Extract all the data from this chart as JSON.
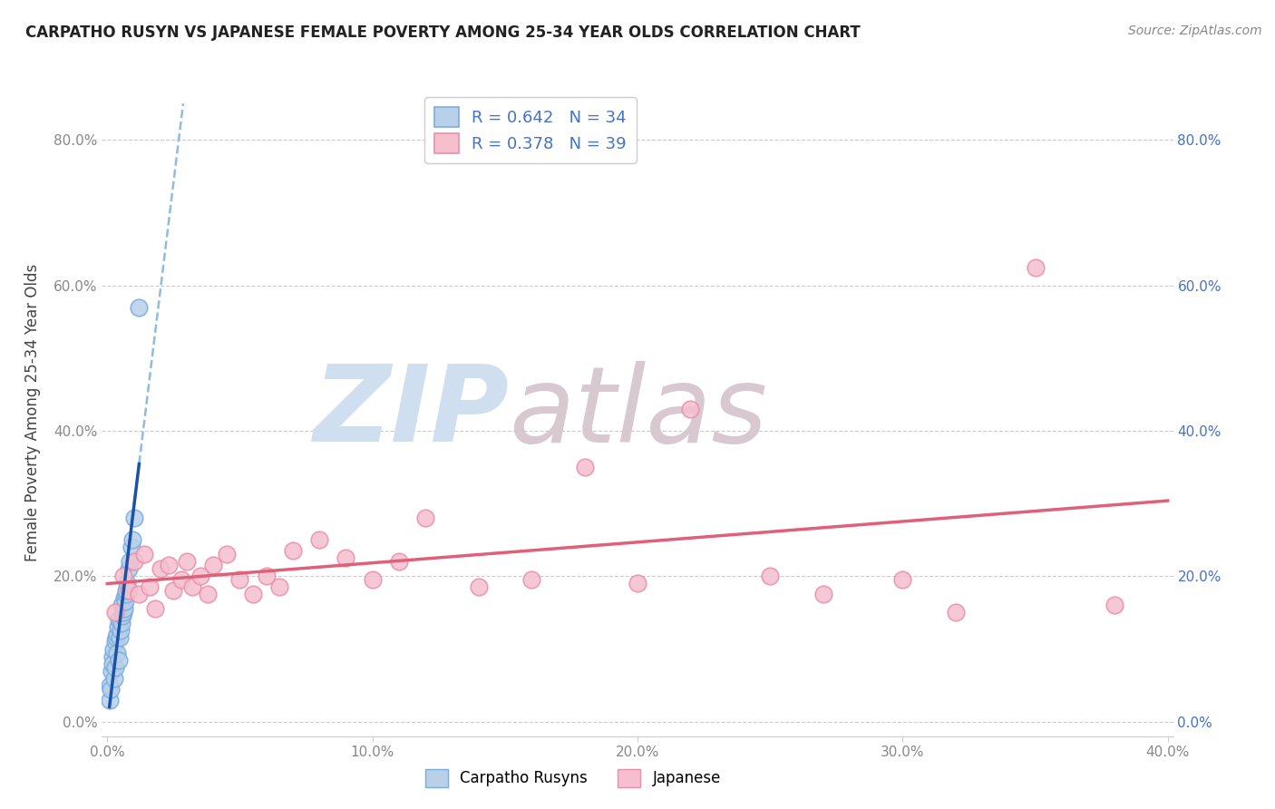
{
  "title": "CARPATHO RUSYN VS JAPANESE FEMALE POVERTY AMONG 25-34 YEAR OLDS CORRELATION CHART",
  "source": "Source: ZipAtlas.com",
  "ylabel": "Female Poverty Among 25-34 Year Olds",
  "xlim": [
    -0.002,
    0.402
  ],
  "ylim": [
    -0.02,
    0.87
  ],
  "x_ticks": [
    0.0,
    0.1,
    0.2,
    0.3,
    0.4
  ],
  "x_tick_labels": [
    "0.0%",
    "10.0%",
    "20.0%",
    "30.0%",
    "40.0%"
  ],
  "y_ticks": [
    0.0,
    0.2,
    0.4,
    0.6,
    0.8
  ],
  "y_tick_labels": [
    "0.0%",
    "20.0%",
    "40.0%",
    "60.0%",
    "80.0%"
  ],
  "carpatho_color": "#b8d0e8",
  "carpatho_edge_color": "#7aace0",
  "japanese_color": "#f5bfce",
  "japanese_edge_color": "#e890aa",
  "carpatho_R": 0.642,
  "carpatho_N": 34,
  "japanese_R": 0.378,
  "japanese_N": 39,
  "carpatho_line_color": "#1a52a8",
  "carpatho_dash_color": "#90bce0",
  "japanese_line_color": "#e0607a",
  "watermark_zip": "ZIP",
  "watermark_atlas": "atlas",
  "watermark_color_zip": "#d0dff0",
  "watermark_color_atlas": "#d8c8d0",
  "grid_color": "#cccccc",
  "title_color": "#222222",
  "source_color": "#888888",
  "right_tick_color": "#4472c4",
  "left_tick_color": "#888888",
  "carpatho_x": [
    0.0008,
    0.001,
    0.0012,
    0.0015,
    0.0018,
    0.002,
    0.0022,
    0.0025,
    0.0028,
    0.003,
    0.0032,
    0.0035,
    0.0038,
    0.004,
    0.0042,
    0.0045,
    0.0048,
    0.005,
    0.0052,
    0.0055,
    0.0058,
    0.006,
    0.0063,
    0.0065,
    0.0068,
    0.007,
    0.0072,
    0.0075,
    0.008,
    0.0085,
    0.009,
    0.0095,
    0.01,
    0.012
  ],
  "carpatho_y": [
    0.03,
    0.05,
    0.045,
    0.07,
    0.09,
    0.08,
    0.1,
    0.06,
    0.075,
    0.11,
    0.115,
    0.095,
    0.12,
    0.13,
    0.085,
    0.14,
    0.115,
    0.125,
    0.16,
    0.135,
    0.145,
    0.15,
    0.155,
    0.17,
    0.165,
    0.175,
    0.18,
    0.19,
    0.21,
    0.22,
    0.24,
    0.25,
    0.28,
    0.57
  ],
  "japanese_x": [
    0.003,
    0.006,
    0.008,
    0.01,
    0.012,
    0.014,
    0.016,
    0.018,
    0.02,
    0.023,
    0.025,
    0.028,
    0.03,
    0.032,
    0.035,
    0.038,
    0.04,
    0.045,
    0.05,
    0.055,
    0.06,
    0.065,
    0.07,
    0.08,
    0.09,
    0.1,
    0.11,
    0.12,
    0.14,
    0.16,
    0.18,
    0.2,
    0.22,
    0.25,
    0.27,
    0.3,
    0.32,
    0.35,
    0.38
  ],
  "japanese_y": [
    0.15,
    0.2,
    0.18,
    0.22,
    0.175,
    0.23,
    0.185,
    0.155,
    0.21,
    0.215,
    0.18,
    0.195,
    0.22,
    0.185,
    0.2,
    0.175,
    0.215,
    0.23,
    0.195,
    0.175,
    0.2,
    0.185,
    0.235,
    0.25,
    0.225,
    0.195,
    0.22,
    0.28,
    0.185,
    0.195,
    0.35,
    0.19,
    0.43,
    0.2,
    0.175,
    0.195,
    0.15,
    0.625,
    0.16
  ]
}
